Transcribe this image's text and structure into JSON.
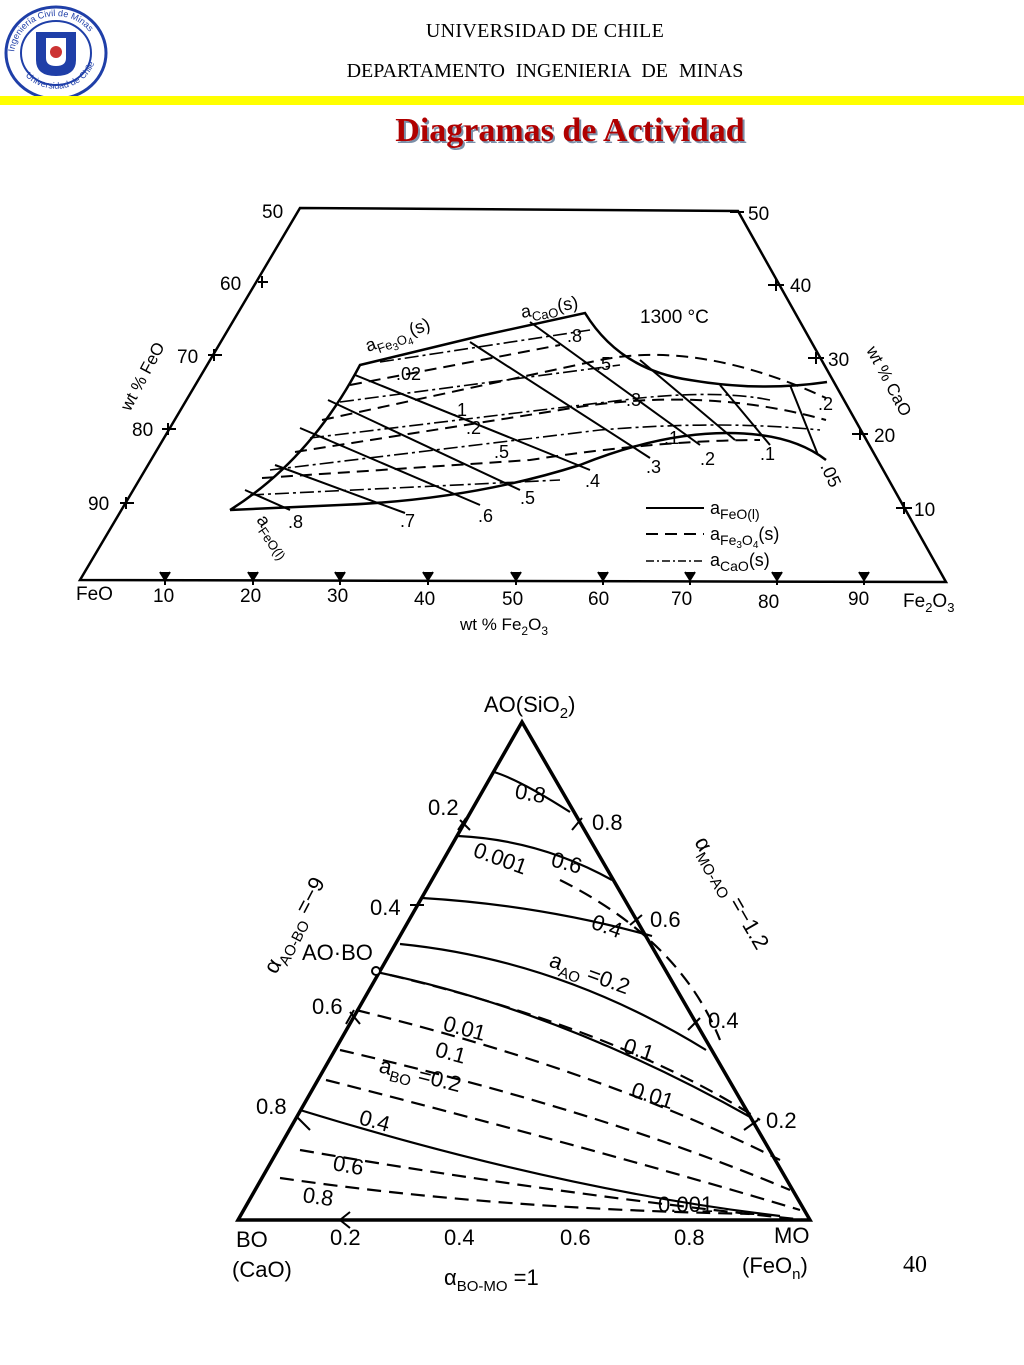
{
  "header": {
    "university": "UNIVERSIDAD DE CHILE",
    "department": "DEPARTAMENTO   INGENIERIA DE  MINAS",
    "logo_text_top": "Ingeniería Civil de Minas",
    "logo_text_bottom": "Universidad de Chile",
    "logo_letter": "U"
  },
  "title": "Diagramas de Actividad",
  "page_number": "40",
  "colors": {
    "title": "#b00000",
    "bar": "#ffff00",
    "logo_blue": "#1f3fa8"
  },
  "diagram1": {
    "temperature": "1300 °C",
    "x_axis": {
      "label": "wt % Fe",
      "label_sub": "2",
      "label_o": "O",
      "label_sub2": "3",
      "left_end": "FeO",
      "right_end_base": "Fe",
      "right_end_sub": "2",
      "right_end_o": "O",
      "right_end_sub2": "3",
      "ticks": [
        "10",
        "20",
        "30",
        "40",
        "50",
        "60",
        "70",
        "80",
        "90"
      ]
    },
    "left_axis": {
      "label": "wt % FeO",
      "ticks": [
        "50",
        "60",
        "70",
        "80",
        "90"
      ]
    },
    "right_axis": {
      "label": "wt % CaO",
      "ticks": [
        "50",
        "40",
        "30",
        "20",
        "10"
      ]
    },
    "curve_labels": {
      "feo_name": "a",
      "feo_sub": "FeO(l)",
      "fe3o4_name": "a",
      "fe3o4_sub": "Fe",
      "fe3o4_sub2": "3",
      "fe3o4_rest": "O",
      "fe3o4_sub3": "4",
      "fe3o4_state": "(s)",
      "cao_name": "a",
      "cao_sub": "CaO",
      "cao_state": "(s)"
    },
    "feo_values": [
      ".8",
      ".7",
      ".6",
      ".5",
      ".4",
      ".3",
      ".2",
      ".1",
      ".05"
    ],
    "fe3o4_values": [
      ".02",
      ".1",
      ".2",
      ".5"
    ],
    "cao_values": [
      ".8",
      ".5",
      ".3",
      ".1",
      ".2"
    ],
    "legend": [
      {
        "style": "solid",
        "name": "a",
        "sub": "FeO(l)"
      },
      {
        "style": "dashed",
        "name": "a",
        "sub": "Fe",
        "sub2": "3",
        "rest": "O",
        "sub3": "4",
        "state": "(s)"
      },
      {
        "style": "dashdot",
        "name": "a",
        "sub": "CaO",
        "state": "(s)"
      }
    ]
  },
  "diagram2": {
    "apex_label": "AO(SiO",
    "apex_sub": "2",
    "apex_close": ")",
    "left_vertex": "BO",
    "left_vertex_formula": "(CaO)",
    "right_vertex": "MO",
    "right_vertex_formula_pre": "(FeO",
    "right_vertex_formula_sub": "n",
    "right_vertex_formula_post": ")",
    "compound": "AO·BO",
    "bottom_ticks": [
      "0.2",
      "0.4",
      "0.6",
      "0.8"
    ],
    "left_ticks": [
      "0.2",
      "0.4",
      "0.6",
      "0.8"
    ],
    "right_ticks": [
      "0.8",
      "0.6",
      "0.4",
      "0.2"
    ],
    "alpha_left": "α",
    "alpha_left_sub": "AO-BO",
    "alpha_left_value": " =−9",
    "alpha_right": "α",
    "alpha_right_sub": "MO-AO",
    "alpha_right_value": " =−1.2",
    "alpha_bottom": "α",
    "alpha_bottom_sub": "BO-MO",
    "alpha_bottom_value": " =1",
    "a_ao_label": "a",
    "a_ao_sub": "AO",
    "a_ao_value": " =0.2",
    "a_bo_label": "a",
    "a_bo_sub": "BO",
    "a_bo_value": " =0.2",
    "ao_values": [
      "0.8",
      "0.001",
      "0.6",
      "0.4",
      "0.01",
      "0.1",
      "0.01",
      "0.1",
      "0.001"
    ],
    "bo_values": [
      "0.4",
      "0.6",
      "0.8"
    ]
  }
}
